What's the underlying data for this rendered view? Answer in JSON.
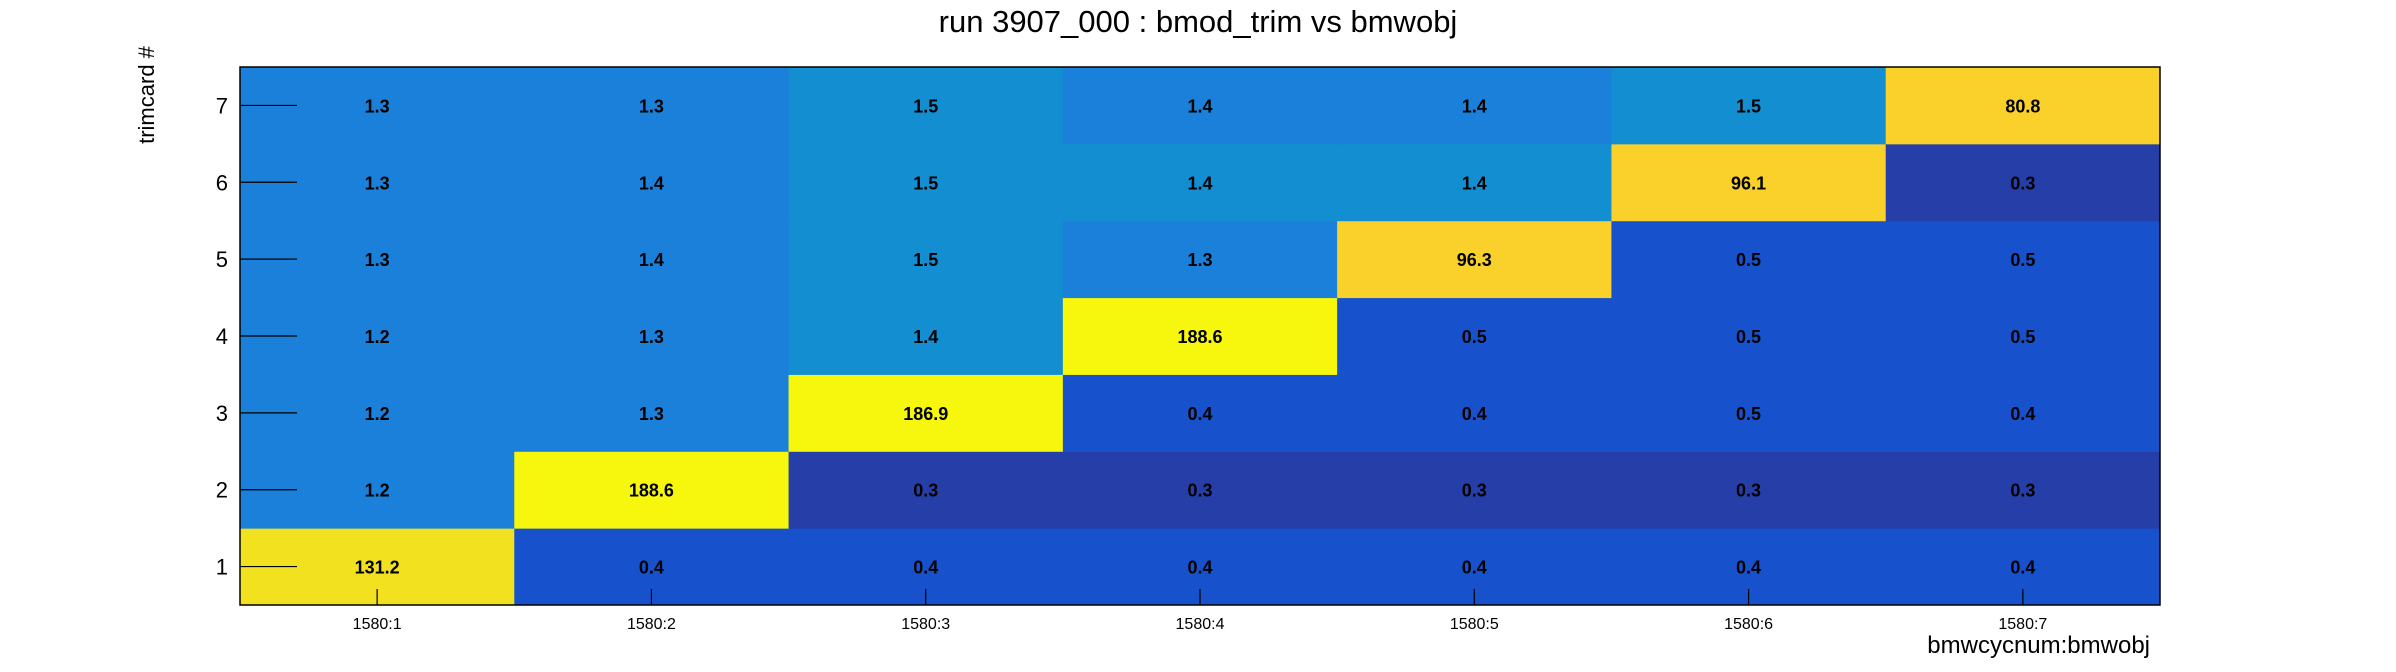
{
  "chart_data": {
    "type": "heatmap",
    "title": "run 3907_000 : bmod_trim vs bmwobj",
    "xlabel": "bmwcycnum:bmwobj",
    "ylabel": "trimcard #",
    "x_categories": [
      "1580:1",
      "1580:2",
      "1580:3",
      "1580:4",
      "1580:5",
      "1580:6",
      "1580:7"
    ],
    "y_categories": [
      "1",
      "2",
      "3",
      "4",
      "5",
      "6",
      "7"
    ],
    "values": [
      [
        131.2,
        0.4,
        0.4,
        0.4,
        0.4,
        0.4,
        0.4
      ],
      [
        1.2,
        188.6,
        0.3,
        0.3,
        0.3,
        0.3,
        0.3
      ],
      [
        1.2,
        1.3,
        186.9,
        0.4,
        0.4,
        0.5,
        0.4
      ],
      [
        1.2,
        1.3,
        1.4,
        188.6,
        0.5,
        0.5,
        0.5
      ],
      [
        1.3,
        1.4,
        1.5,
        1.3,
        96.3,
        0.5,
        0.5
      ],
      [
        1.3,
        1.4,
        1.5,
        1.4,
        1.4,
        96.1,
        0.3
      ],
      [
        1.3,
        1.3,
        1.5,
        1.4,
        1.4,
        1.5,
        80.8
      ]
    ],
    "cell_colors": [
      [
        "#f2e11e",
        "#1752cc",
        "#1752cc",
        "#1752cc",
        "#1752cc",
        "#1752cc",
        "#1752cc"
      ],
      [
        "#1a80d9",
        "#f7f70e",
        "#263ea8",
        "#263ea8",
        "#263ea8",
        "#263ea8",
        "#263ea8"
      ],
      [
        "#1a80d9",
        "#1a80d9",
        "#f7f70e",
        "#1752cc",
        "#1752cc",
        "#1752cc",
        "#1752cc"
      ],
      [
        "#1a80d9",
        "#1a80d9",
        "#138ed1",
        "#f7f70e",
        "#1752cc",
        "#1752cc",
        "#1752cc"
      ],
      [
        "#1a80d9",
        "#1a80d9",
        "#138ed1",
        "#1a80d9",
        "#fad12a",
        "#1752cc",
        "#1752cc"
      ],
      [
        "#1a80d9",
        "#1a80d9",
        "#138ed1",
        "#138ed1",
        "#138ed1",
        "#fad12a",
        "#263ea8"
      ],
      [
        "#1a80d9",
        "#1a80d9",
        "#138ed1",
        "#1a80d9",
        "#1a80d9",
        "#138ed1",
        "#fad12a"
      ]
    ],
    "grid": false,
    "legend": "none"
  }
}
